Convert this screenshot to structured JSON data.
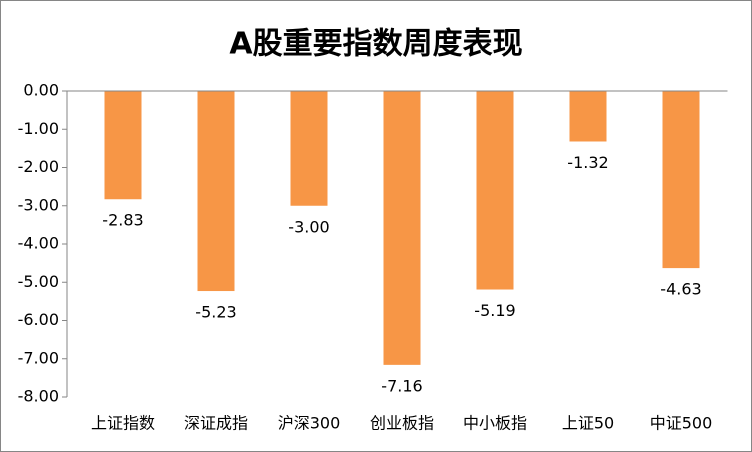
{
  "chart_data": {
    "type": "bar",
    "title": "A股重要指数周度表现",
    "categories": [
      "上证指数",
      "深证成指",
      "沪深300",
      "创业板指",
      "中小板指",
      "上证50",
      "中证500"
    ],
    "values": [
      -2.83,
      -5.23,
      -3.0,
      -7.16,
      -5.19,
      -1.32,
      -4.63
    ],
    "value_labels": [
      "-2.83",
      "-5.23",
      "-3.00",
      "-7.16",
      "-5.19",
      "-1.32",
      "-4.63"
    ],
    "color": "#f79646",
    "ylim": [
      -8,
      0
    ],
    "yticks": [
      {
        "value": 0,
        "label": "0.00"
      },
      {
        "value": -1,
        "label": "-1.00"
      },
      {
        "value": -2,
        "label": "-2.00"
      },
      {
        "value": -3,
        "label": "-3.00"
      },
      {
        "value": -4,
        "label": "-4.00"
      },
      {
        "value": -5,
        "label": "-5.00"
      },
      {
        "value": -6,
        "label": "-6.00"
      },
      {
        "value": -7,
        "label": "-7.00"
      },
      {
        "value": -8,
        "label": "-8.00"
      }
    ],
    "grid": false
  }
}
